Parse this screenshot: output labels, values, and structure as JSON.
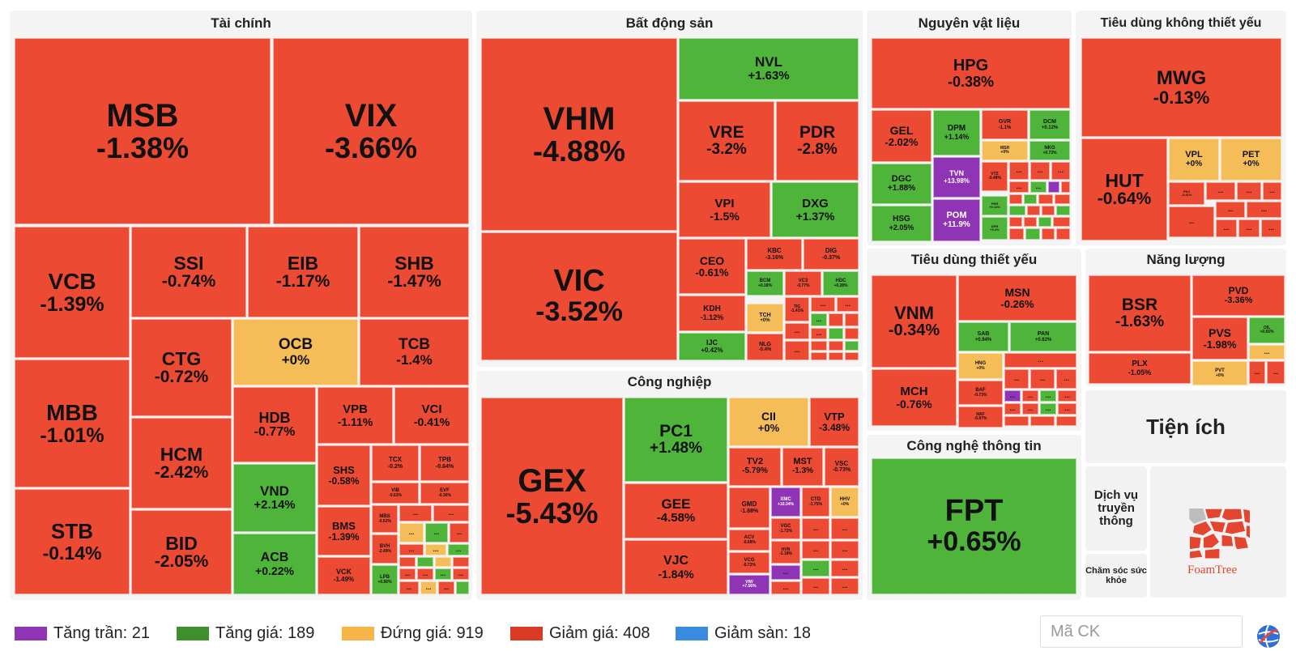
{
  "colors": {
    "ceiling": "#8f34b5",
    "up": "#43a12e",
    "up_light": "#4fb53a",
    "flat": "#f5bd57",
    "down": "#ec4a32",
    "down_deep": "#e1402a",
    "floor": "#2f86e0"
  },
  "chart_data": {
    "type": "heatmap",
    "sectors": [
      {
        "name": "Tài chính",
        "stocks": [
          {
            "ticker": "MSB",
            "change": "-1.38%"
          },
          {
            "ticker": "VIX",
            "change": "-3.66%"
          },
          {
            "ticker": "VCB",
            "change": "-1.39%"
          },
          {
            "ticker": "SSI",
            "change": "-0.74%"
          },
          {
            "ticker": "EIB",
            "change": "-1.17%"
          },
          {
            "ticker": "SHB",
            "change": "-1.47%"
          },
          {
            "ticker": "MBB",
            "change": "-1.01%"
          },
          {
            "ticker": "CTG",
            "change": "-0.72%"
          },
          {
            "ticker": "OCB",
            "change": "+0%"
          },
          {
            "ticker": "TCB",
            "change": "-1.4%"
          },
          {
            "ticker": "HCM",
            "change": "-2.42%"
          },
          {
            "ticker": "HDB",
            "change": "-0.77%"
          },
          {
            "ticker": "VPB",
            "change": "-1.11%"
          },
          {
            "ticker": "VCI",
            "change": "-0.41%"
          },
          {
            "ticker": "STB",
            "change": "-0.14%"
          },
          {
            "ticker": "BID",
            "change": "-2.05%"
          },
          {
            "ticker": "VND",
            "change": "+2.14%"
          },
          {
            "ticker": "SHS",
            "change": "-0.58%"
          },
          {
            "ticker": "TCX",
            "change": "-0.2%"
          },
          {
            "ticker": "TPB",
            "change": "-0.64%"
          },
          {
            "ticker": "VIB",
            "change": "-0.63%"
          },
          {
            "ticker": "EVF",
            "change": "-0.36%"
          },
          {
            "ticker": "BMS",
            "change": "-1.39%"
          },
          {
            "ticker": "MBS",
            "change": "-0.52%"
          },
          {
            "ticker": "BVH",
            "change": "-2.49%"
          },
          {
            "ticker": "ACB",
            "change": "+0.22%"
          },
          {
            "ticker": "VCK",
            "change": "-1.49%"
          },
          {
            "ticker": "LPB",
            "change": "+0.56%"
          }
        ]
      },
      {
        "name": "Bất động sản",
        "stocks": [
          {
            "ticker": "VHM",
            "change": "-4.88%"
          },
          {
            "ticker": "NVL",
            "change": "+1.63%"
          },
          {
            "ticker": "VRE",
            "change": "-3.2%"
          },
          {
            "ticker": "PDR",
            "change": "-2.8%"
          },
          {
            "ticker": "VPI",
            "change": "-1.5%"
          },
          {
            "ticker": "DXG",
            "change": "+1.37%"
          },
          {
            "ticker": "VIC",
            "change": "-3.52%"
          },
          {
            "ticker": "CEO",
            "change": "-0.61%"
          },
          {
            "ticker": "KBC",
            "change": "-3.16%"
          },
          {
            "ticker": "DIG",
            "change": "-0.37%"
          },
          {
            "ticker": "BCM",
            "change": "+0.18%"
          },
          {
            "ticker": "VC3",
            "change": "-0.77%"
          },
          {
            "ticker": "HDC",
            "change": "+0.28%"
          },
          {
            "ticker": "KDH",
            "change": "-1.12%"
          },
          {
            "ticker": "TCH",
            "change": "+0%"
          },
          {
            "ticker": "TIG",
            "change": "-1.41%"
          },
          {
            "ticker": "IJC",
            "change": "+0.42%"
          },
          {
            "ticker": "NLG",
            "change": "-0.4%"
          }
        ]
      },
      {
        "name": "Nguyên vật liệu",
        "stocks": [
          {
            "ticker": "HPG",
            "change": "-0.38%"
          },
          {
            "ticker": "GEL",
            "change": "-2.02%"
          },
          {
            "ticker": "DPM",
            "change": "+1.14%"
          },
          {
            "ticker": "GVR",
            "change": "-1.1%"
          },
          {
            "ticker": "DCM",
            "change": "+0.12%"
          },
          {
            "ticker": "MSR",
            "change": "+0%"
          },
          {
            "ticker": "NKG",
            "change": "+0.73%"
          },
          {
            "ticker": "DGC",
            "change": "+1.88%"
          },
          {
            "ticker": "TVN",
            "change": "+13.98%"
          },
          {
            "ticker": "VTZ",
            "change": "-0.48%"
          },
          {
            "ticker": "HSG",
            "change": "+2.05%"
          },
          {
            "ticker": "POM",
            "change": "+11.9%"
          },
          {
            "ticker": "PHR",
            "change": "+0.14%"
          },
          {
            "ticker": "DPR",
            "change": "+0.4%"
          }
        ]
      },
      {
        "name": "Tiêu dùng không thiết yếu",
        "stocks": [
          {
            "ticker": "MWG",
            "change": "-0.13%"
          },
          {
            "ticker": "HUT",
            "change": "-0.64%"
          },
          {
            "ticker": "VPL",
            "change": "+0%"
          },
          {
            "ticker": "PET",
            "change": "+0%"
          },
          {
            "ticker": "PNJ",
            "change": "-0.31%"
          }
        ]
      },
      {
        "name": "Tiêu dùng thiết yếu",
        "stocks": [
          {
            "ticker": "VNM",
            "change": "-0.34%"
          },
          {
            "ticker": "MSN",
            "change": "-0.26%"
          },
          {
            "ticker": "SAB",
            "change": "+0.94%"
          },
          {
            "ticker": "PAN",
            "change": "+0.62%"
          },
          {
            "ticker": "HNG",
            "change": "+0%"
          },
          {
            "ticker": "MCH",
            "change": "-0.76%"
          },
          {
            "ticker": "BAF",
            "change": "-0.73%"
          },
          {
            "ticker": "NAF",
            "change": "-0.97%"
          }
        ]
      },
      {
        "name": "Năng lượng",
        "stocks": [
          {
            "ticker": "BSR",
            "change": "-1.63%"
          },
          {
            "ticker": "PVD",
            "change": "-3.36%"
          },
          {
            "ticker": "PVS",
            "change": "-1.98%"
          },
          {
            "ticker": "OIL",
            "change": "+0.65%"
          },
          {
            "ticker": "PLX",
            "change": "-1.05%"
          },
          {
            "ticker": "PVT",
            "change": "+0%"
          }
        ]
      },
      {
        "name": "Công nghiệp",
        "stocks": [
          {
            "ticker": "GEX",
            "change": "-5.43%"
          },
          {
            "ticker": "PC1",
            "change": "+1.48%"
          },
          {
            "ticker": "CII",
            "change": "+0%"
          },
          {
            "ticker": "VTP",
            "change": "-3.48%"
          },
          {
            "ticker": "TV2",
            "change": "-5.79%"
          },
          {
            "ticker": "MST",
            "change": "-1.3%"
          },
          {
            "ticker": "VSC",
            "change": "-0.73%"
          },
          {
            "ticker": "GEE",
            "change": "-4.58%"
          },
          {
            "ticker": "GMD",
            "change": "-1.88%"
          },
          {
            "ticker": "XMC",
            "change": "+10.34%"
          },
          {
            "ticker": "CTD",
            "change": "-1.75%"
          },
          {
            "ticker": "HHV",
            "change": "+0%"
          },
          {
            "ticker": "ACV",
            "change": "-0.68%"
          },
          {
            "ticker": "VGC",
            "change": "-1.72%"
          },
          {
            "ticker": "VJC",
            "change": "-1.84%"
          },
          {
            "ticker": "VCG",
            "change": "-0.72%"
          },
          {
            "ticker": "HVN",
            "change": "-1.18%"
          },
          {
            "ticker": "VIW",
            "change": "+7.56%"
          }
        ]
      },
      {
        "name": "Công nghệ thông tin",
        "stocks": [
          {
            "ticker": "FPT",
            "change": "+0.65%"
          }
        ]
      },
      {
        "name": "Tiện ích",
        "stocks": []
      }
    ],
    "other_groups": [
      "Dịch vụ truyền thông",
      "Chăm sóc sức khỏe"
    ],
    "ellipsis": "...",
    "brand": "FoamTree",
    "legend": [
      {
        "label": "Tăng trần: 21",
        "color": "#8f34b5"
      },
      {
        "label": "Tăng giá: 189",
        "color": "#3f8f2f"
      },
      {
        "label": "Đứng giá: 919",
        "color": "#f5b549"
      },
      {
        "label": "Giảm giá: 408",
        "color": "#d93a24"
      },
      {
        "label": "Giảm sàn: 18",
        "color": "#3a8be0"
      }
    ]
  },
  "search": {
    "placeholder": "Mã CK"
  }
}
